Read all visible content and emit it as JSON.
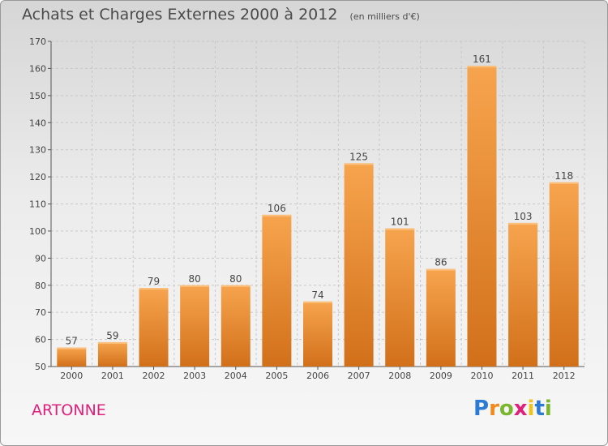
{
  "title": "Achats et Charges Externes 2000 à 2012",
  "unit": "(en milliers d'€)",
  "commune": "ARTONNE",
  "logo": {
    "letters": [
      "P",
      "r",
      "o",
      "x",
      "i",
      "t",
      "i"
    ],
    "colors": [
      "#2b7bd4",
      "#f08a1c",
      "#7ab72e",
      "#e0207a",
      "#f0c21c",
      "#2b7bd4",
      "#7ab72e"
    ]
  },
  "colors": {
    "bar_top": "#f7a44e",
    "bar_bottom": "#d2701a",
    "grid": "#c8c8c8",
    "text": "#444444"
  },
  "chart_data": {
    "type": "bar",
    "categories": [
      "2000",
      "2001",
      "2002",
      "2003",
      "2004",
      "2005",
      "2006",
      "2007",
      "2008",
      "2009",
      "2010",
      "2011",
      "2012"
    ],
    "values": [
      57,
      59,
      79,
      80,
      80,
      106,
      74,
      125,
      101,
      86,
      161,
      103,
      118
    ],
    "ylim": [
      50,
      170
    ],
    "yticks": [
      50,
      60,
      70,
      80,
      90,
      100,
      110,
      120,
      130,
      140,
      150,
      160,
      170
    ],
    "grid": true,
    "data_labels": true
  }
}
